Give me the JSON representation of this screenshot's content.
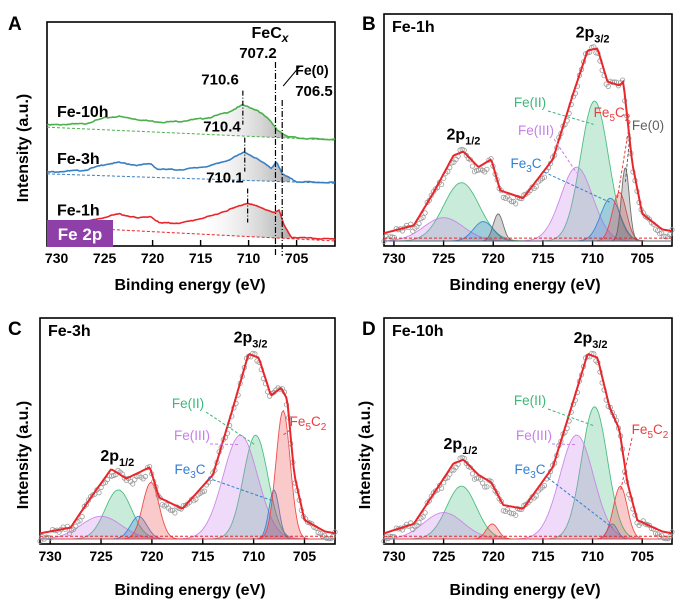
{
  "colors": {
    "red": "#e8262b",
    "blue": "#3a7fc2",
    "green": "#4ab04a",
    "feII": "#3cb878",
    "feIII": "#c77ee8",
    "fe3c": "#2f7fd6",
    "fe5c2": "#ee3c3c",
    "fe0": "#606060",
    "badge": "#8e3fa8"
  },
  "chart_data": [
    {
      "panel": "A",
      "type": "line",
      "xlabel": "Binding energy (eV)",
      "ylabel": "Intensity (a.u.)",
      "xlim": [
        731,
        701
      ],
      "xticks": [
        730,
        725,
        720,
        715,
        710,
        705
      ],
      "badge": "Fe 2p",
      "annotations": {
        "fec": "FeC",
        "fec_sub": "x",
        "fe0": "Fe(0)",
        "v7072": "707.2",
        "v7065": "706.5"
      },
      "series": [
        {
          "name": "Fe-10h",
          "color": "green",
          "offset": 2.1,
          "peak_label": "710.6",
          "peak_x": 710.6,
          "points": [
            [
              731,
              0.3
            ],
            [
              727,
              0.33
            ],
            [
              725,
              0.45
            ],
            [
              723.5,
              0.48
            ],
            [
              721,
              0.4
            ],
            [
              719,
              0.36
            ],
            [
              717,
              0.38
            ],
            [
              714,
              0.46
            ],
            [
              712,
              0.58
            ],
            [
              710.6,
              0.72
            ],
            [
              709,
              0.6
            ],
            [
              707.8,
              0.4
            ],
            [
              707,
              0.2
            ],
            [
              706,
              0.06
            ],
            [
              704,
              0.02
            ],
            [
              701,
              0.0
            ]
          ]
        },
        {
          "name": "Fe-3h",
          "color": "blue",
          "offset": 1.2,
          "peak_label": "710.4",
          "peak_x": 710.4,
          "points": [
            [
              731,
              0.22
            ],
            [
              727,
              0.26
            ],
            [
              725,
              0.38
            ],
            [
              723.5,
              0.42
            ],
            [
              721.5,
              0.36
            ],
            [
              720.2,
              0.4
            ],
            [
              719.5,
              0.28
            ],
            [
              717,
              0.27
            ],
            [
              714,
              0.35
            ],
            [
              712,
              0.48
            ],
            [
              710.4,
              0.64
            ],
            [
              709,
              0.48
            ],
            [
              707.6,
              0.3
            ],
            [
              707.1,
              0.45
            ],
            [
              706.5,
              0.18
            ],
            [
              705,
              0.02
            ],
            [
              701,
              0.0
            ]
          ]
        },
        {
          "name": "Fe-1h",
          "color": "red",
          "offset": 0.0,
          "peak_label": "710.1",
          "peak_x": 710.1,
          "points": [
            [
              731,
              0.34
            ],
            [
              727,
              0.38
            ],
            [
              725,
              0.48
            ],
            [
              723.5,
              0.55
            ],
            [
              721.5,
              0.46
            ],
            [
              720.2,
              0.5
            ],
            [
              719.3,
              0.36
            ],
            [
              717,
              0.36
            ],
            [
              714,
              0.5
            ],
            [
              712,
              0.64
            ],
            [
              710.1,
              0.78
            ],
            [
              708.5,
              0.66
            ],
            [
              707.3,
              0.58
            ],
            [
              706.8,
              0.62
            ],
            [
              706.3,
              0.3
            ],
            [
              705.5,
              0.06
            ],
            [
              701,
              0.02
            ]
          ]
        }
      ]
    },
    {
      "panel": "B",
      "title": "Fe-1h",
      "type": "line",
      "xlabel": "Binding energy (eV)",
      "ylabel": "",
      "xlim": [
        731,
        702
      ],
      "xticks": [
        730,
        725,
        720,
        715,
        710,
        705
      ],
      "ymax": 1.08,
      "peaks": {
        "p12": {
          "x": 723.0,
          "main": "2p",
          "sub": "1/2"
        },
        "p32": {
          "x": 710.0,
          "main": "2p",
          "sub": "3/2"
        }
      },
      "envelope": [
        [
          731,
          0.04
        ],
        [
          728,
          0.08
        ],
        [
          726,
          0.25
        ],
        [
          724,
          0.44
        ],
        [
          723,
          0.46
        ],
        [
          721.5,
          0.38
        ],
        [
          720.2,
          0.42
        ],
        [
          719.3,
          0.26
        ],
        [
          717,
          0.22
        ],
        [
          714,
          0.42
        ],
        [
          712,
          0.75
        ],
        [
          710.5,
          0.98
        ],
        [
          709.5,
          0.99
        ],
        [
          708.5,
          0.82
        ],
        [
          707.3,
          0.8
        ],
        [
          706.9,
          0.82
        ],
        [
          706,
          0.4
        ],
        [
          705,
          0.14
        ],
        [
          703,
          0.06
        ],
        [
          702,
          0.05
        ]
      ],
      "components": [
        {
          "label": "Fe(II)",
          "label2": "",
          "color": "feII",
          "center": 709.8,
          "height": 0.72,
          "width": 1.4
        },
        {
          "label": "Fe(III)",
          "label2": "",
          "color": "feIII",
          "center": 711.6,
          "height": 0.38,
          "width": 1.6
        },
        {
          "label": "Fe",
          "label2": "C",
          "sub": "3",
          "sub2": "",
          "color": "fe3c",
          "center": 708.2,
          "height": 0.22,
          "width": 1.0
        },
        {
          "label": "Fe",
          "label2": "C",
          "sub": "5",
          "sub2": "2",
          "color": "fe5c2",
          "center": 707.3,
          "height": 0.25,
          "width": 0.7
        },
        {
          "label": "Fe(0)",
          "label2": "",
          "color": "fe0",
          "center": 706.7,
          "height": 0.38,
          "width": 0.4
        },
        {
          "label": "",
          "color": "feII",
          "center": 723.2,
          "height": 0.3,
          "width": 1.8
        },
        {
          "label": "",
          "color": "feIII",
          "center": 725.0,
          "height": 0.12,
          "width": 2.0
        },
        {
          "label": "",
          "color": "fe3c",
          "center": 721.0,
          "height": 0.1,
          "width": 1.0
        },
        {
          "label": "",
          "color": "fe0",
          "center": 719.5,
          "height": 0.14,
          "width": 0.5
        }
      ]
    },
    {
      "panel": "C",
      "title": "Fe-3h",
      "type": "line",
      "xlabel": "Binding energy (eV)",
      "ylabel": "Intensity (a.u.)",
      "xlim": [
        731,
        702
      ],
      "xticks": [
        730,
        725,
        720,
        715,
        710,
        705
      ],
      "ymax": 1.08,
      "peaks": {
        "p12": {
          "x": 723.4,
          "main": "2p",
          "sub": "1/2"
        },
        "p32": {
          "x": 710.3,
          "main": "2p",
          "sub": "3/2"
        }
      },
      "envelope": [
        [
          731,
          0.03
        ],
        [
          728,
          0.06
        ],
        [
          726,
          0.22
        ],
        [
          724,
          0.37
        ],
        [
          722.5,
          0.32
        ],
        [
          720.2,
          0.38
        ],
        [
          719.3,
          0.22
        ],
        [
          717,
          0.16
        ],
        [
          714,
          0.34
        ],
        [
          712,
          0.7
        ],
        [
          710.5,
          0.98
        ],
        [
          709.5,
          0.96
        ],
        [
          708.3,
          0.76
        ],
        [
          707.3,
          0.8
        ],
        [
          706.7,
          0.74
        ],
        [
          706,
          0.34
        ],
        [
          705,
          0.1
        ],
        [
          703,
          0.04
        ],
        [
          702,
          0.03
        ]
      ],
      "components": [
        {
          "label": "Fe(II)",
          "label2": "",
          "color": "feII",
          "center": 709.8,
          "height": 0.55,
          "width": 1.2
        },
        {
          "label": "Fe(III)",
          "label2": "",
          "color": "feIII",
          "center": 711.3,
          "height": 0.55,
          "width": 1.7
        },
        {
          "label": "Fe",
          "label2": "C",
          "sub": "3",
          "sub2": "",
          "color": "fe3c",
          "center": 708.0,
          "height": 0.26,
          "width": 0.5
        },
        {
          "label": "Fe",
          "label2": "C",
          "sub": "5",
          "sub2": "2",
          "color": "fe5c2",
          "center": 707.1,
          "height": 0.68,
          "width": 0.7
        },
        {
          "label": "",
          "color": "feII",
          "center": 723.3,
          "height": 0.26,
          "width": 1.3
        },
        {
          "label": "",
          "color": "feIII",
          "center": 725.0,
          "height": 0.12,
          "width": 2.0
        },
        {
          "label": "",
          "color": "fe3c",
          "center": 721.3,
          "height": 0.12,
          "width": 0.8
        },
        {
          "label": "",
          "color": "fe5c2",
          "center": 720.1,
          "height": 0.3,
          "width": 0.8
        }
      ]
    },
    {
      "panel": "D",
      "title": "Fe-10h",
      "type": "line",
      "xlabel": "Binding energy (eV)",
      "ylabel": "Intensity (a.u.)",
      "xlim": [
        731,
        702
      ],
      "xticks": [
        730,
        725,
        720,
        715,
        710,
        705
      ],
      "ymax": 1.08,
      "peaks": {
        "p12": {
          "x": 723.3,
          "main": "2p",
          "sub": "1/2"
        },
        "p32": {
          "x": 710.2,
          "main": "2p",
          "sub": "3/2"
        }
      },
      "envelope": [
        [
          731,
          0.03
        ],
        [
          728,
          0.08
        ],
        [
          726,
          0.24
        ],
        [
          724,
          0.4
        ],
        [
          723,
          0.42
        ],
        [
          721.5,
          0.34
        ],
        [
          720.2,
          0.3
        ],
        [
          719,
          0.18
        ],
        [
          717,
          0.16
        ],
        [
          714,
          0.38
        ],
        [
          712,
          0.72
        ],
        [
          710.5,
          0.98
        ],
        [
          709.5,
          0.96
        ],
        [
          708.3,
          0.7
        ],
        [
          707.3,
          0.58
        ],
        [
          706.5,
          0.3
        ],
        [
          705.5,
          0.1
        ],
        [
          703,
          0.04
        ],
        [
          702,
          0.03
        ]
      ],
      "components": [
        {
          "label": "Fe(II)",
          "label2": "",
          "color": "feII",
          "center": 709.8,
          "height": 0.7,
          "width": 1.3
        },
        {
          "label": "Fe(III)",
          "label2": "",
          "color": "feIII",
          "center": 711.6,
          "height": 0.55,
          "width": 1.7
        },
        {
          "label": "Fe",
          "label2": "C",
          "sub": "3",
          "sub2": "",
          "color": "fe3c",
          "center": 708.0,
          "height": 0.08,
          "width": 0.5
        },
        {
          "label": "Fe",
          "label2": "C",
          "sub": "5",
          "sub2": "2",
          "color": "fe5c2",
          "center": 707.2,
          "height": 0.28,
          "width": 0.7
        },
        {
          "label": "",
          "color": "feII",
          "center": 723.2,
          "height": 0.28,
          "width": 1.5
        },
        {
          "label": "",
          "color": "feIII",
          "center": 725.0,
          "height": 0.14,
          "width": 2.0
        },
        {
          "label": "",
          "color": "fe5c2",
          "center": 720.1,
          "height": 0.08,
          "width": 0.6
        }
      ]
    }
  ]
}
